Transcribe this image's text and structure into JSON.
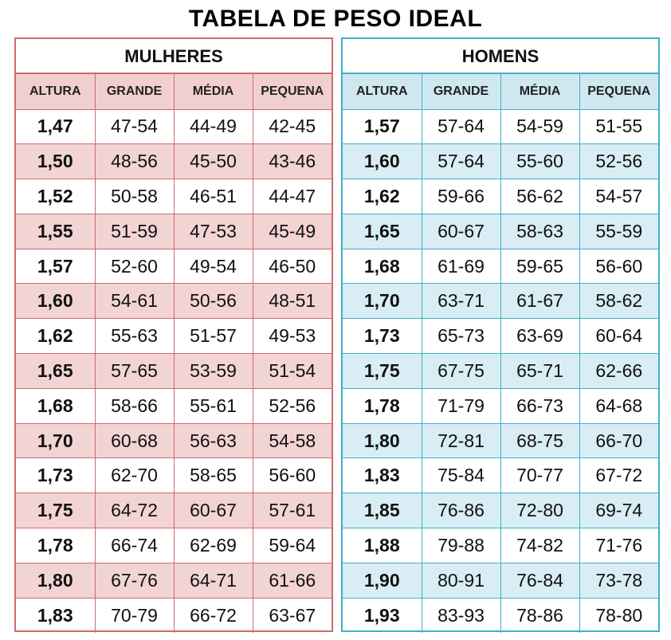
{
  "title": "TABELA DE PESO IDEAL",
  "colors": {
    "women_border": "#d06a6a",
    "women_shade": "#f2d4d4",
    "men_border": "#3fb0cc",
    "men_shade": "#d8eef4"
  },
  "women": {
    "heading": "MULHERES",
    "columns": [
      "ALTURA",
      "GRANDE",
      "MÉDIA",
      "PEQUENA"
    ],
    "rows": [
      [
        "1,47",
        "47-54",
        "44-49",
        "42-45"
      ],
      [
        "1,50",
        "48-56",
        "45-50",
        "43-46"
      ],
      [
        "1,52",
        "50-58",
        "46-51",
        "44-47"
      ],
      [
        "1,55",
        "51-59",
        "47-53",
        "45-49"
      ],
      [
        "1,57",
        "52-60",
        "49-54",
        "46-50"
      ],
      [
        "1,60",
        "54-61",
        "50-56",
        "48-51"
      ],
      [
        "1,62",
        "55-63",
        "51-57",
        "49-53"
      ],
      [
        "1,65",
        "57-65",
        "53-59",
        "51-54"
      ],
      [
        "1,68",
        "58-66",
        "55-61",
        "52-56"
      ],
      [
        "1,70",
        "60-68",
        "56-63",
        "54-58"
      ],
      [
        "1,73",
        "62-70",
        "58-65",
        "56-60"
      ],
      [
        "1,75",
        "64-72",
        "60-67",
        "57-61"
      ],
      [
        "1,78",
        "66-74",
        "62-69",
        "59-64"
      ],
      [
        "1,80",
        "67-76",
        "64-71",
        "61-66"
      ],
      [
        "1,83",
        "70-79",
        "66-72",
        "63-67"
      ]
    ]
  },
  "men": {
    "heading": "HOMENS",
    "columns": [
      "ALTURA",
      "GRANDE",
      "MÉDIA",
      "PEQUENA"
    ],
    "rows": [
      [
        "1,57",
        "57-64",
        "54-59",
        "51-55"
      ],
      [
        "1,60",
        "57-64",
        "55-60",
        "52-56"
      ],
      [
        "1,62",
        "59-66",
        "56-62",
        "54-57"
      ],
      [
        "1,65",
        "60-67",
        "58-63",
        "55-59"
      ],
      [
        "1,68",
        "61-69",
        "59-65",
        "56-60"
      ],
      [
        "1,70",
        "63-71",
        "61-67",
        "58-62"
      ],
      [
        "1,73",
        "65-73",
        "63-69",
        "60-64"
      ],
      [
        "1,75",
        "67-75",
        "65-71",
        "62-66"
      ],
      [
        "1,78",
        "71-79",
        "66-73",
        "64-68"
      ],
      [
        "1,80",
        "72-81",
        "68-75",
        "66-70"
      ],
      [
        "1,83",
        "75-84",
        "70-77",
        "67-72"
      ],
      [
        "1,85",
        "76-86",
        "72-80",
        "69-74"
      ],
      [
        "1,88",
        "79-88",
        "74-82",
        "71-76"
      ],
      [
        "1,90",
        "80-91",
        "76-84",
        "73-78"
      ],
      [
        "1,93",
        "83-93",
        "78-86",
        "78-80"
      ]
    ]
  }
}
